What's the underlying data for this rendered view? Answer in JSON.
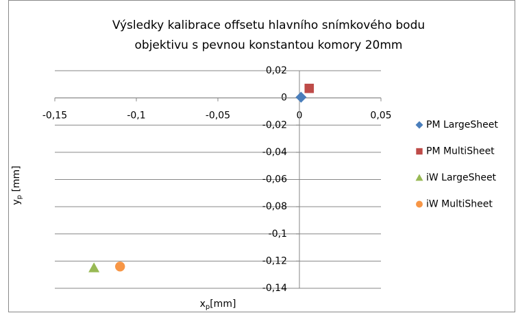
{
  "chart_data": {
    "type": "scatter",
    "title": [
      "Výsledky kalibrace offsetu hlavního snímkového bodu",
      "objektivu s pevnou konstantou komory 20mm"
    ],
    "x_label": [
      "x",
      "p",
      "[mm]"
    ],
    "y_label": [
      "y",
      "p",
      " [mm]"
    ],
    "xlim": [
      -0.15,
      0.05
    ],
    "ylim": [
      -0.14,
      0.02
    ],
    "xticks": [
      {
        "value": -0.15,
        "label": "-0,15"
      },
      {
        "value": -0.1,
        "label": "-0,1"
      },
      {
        "value": -0.05,
        "label": "-0,05"
      },
      0,
      {
        "value": 0.05,
        "label": "0,05"
      }
    ],
    "yticks": [
      {
        "value": 0.02,
        "label": "0,02"
      },
      0,
      {
        "value": -0.02,
        "label": "-0,02"
      },
      {
        "value": -0.04,
        "label": "-0,04"
      },
      {
        "value": -0.06,
        "label": "-0,06"
      },
      {
        "value": -0.08,
        "label": "-0,08"
      },
      {
        "value": -0.1,
        "label": "-0,1"
      },
      {
        "value": -0.12,
        "label": "-0,12"
      },
      {
        "value": -0.14,
        "label": "-0,14"
      }
    ],
    "grid": true,
    "legend": "right",
    "series": [
      {
        "name": "PM LargeSheet",
        "color": "#4a7ebb",
        "marker": "diamond",
        "x": [
          0.001
        ],
        "values": [
          0.0005
        ]
      },
      {
        "name": "PM MultiSheet",
        "color": "#be4b48",
        "marker": "square",
        "x": [
          0.006
        ],
        "values": [
          0.007
        ]
      },
      {
        "name": "iW LargeSheet",
        "color": "#98b954",
        "marker": "triangle",
        "x": [
          -0.126
        ],
        "values": [
          -0.125
        ]
      },
      {
        "name": "iW MultiSheet",
        "color": "#f79646",
        "marker": "circle",
        "x": [
          -0.11
        ],
        "values": [
          -0.124
        ]
      }
    ]
  }
}
